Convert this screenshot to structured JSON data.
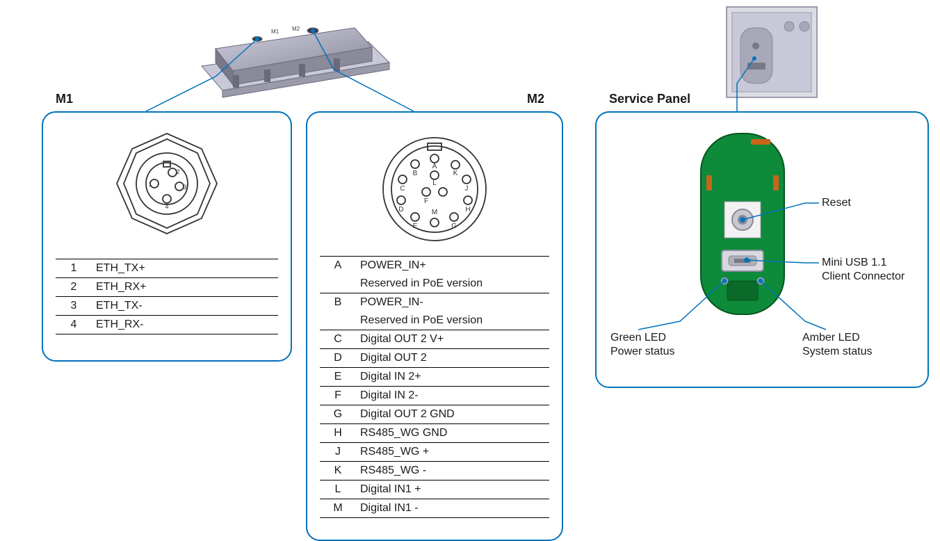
{
  "colors": {
    "panel_border": "#0072bc",
    "callout_line": "#0072bc",
    "text": "#1a1a1a",
    "pcb_green": "#0d8a3a",
    "pcb_dark": "#06561f",
    "copper": "#c7651a",
    "device_gray1": "#b8b8c8",
    "device_gray2": "#8a8a9a",
    "device_gray3": "#6a6a7a",
    "connector_stroke": "#333333"
  },
  "panel_radius": 20,
  "m1": {
    "title": "M1",
    "pins": [
      {
        "id": "1",
        "signal": "ETH_TX+"
      },
      {
        "id": "2",
        "signal": "ETH_RX+"
      },
      {
        "id": "3",
        "signal": "ETH_TX-"
      },
      {
        "id": "4",
        "signal": "ETH_RX-"
      }
    ],
    "connector_pins": [
      "1",
      "2",
      "3",
      "4"
    ]
  },
  "m2": {
    "title": "M2",
    "pins": [
      {
        "id": "A",
        "signal": "POWER_IN+",
        "note": "Reserved in PoE version"
      },
      {
        "id": "B",
        "signal": "POWER_IN-",
        "note": "Reserved in PoE version"
      },
      {
        "id": "C",
        "signal": "Digital OUT 2 V+"
      },
      {
        "id": "D",
        "signal": "Digital OUT 2"
      },
      {
        "id": "E",
        "signal": "Digital IN 2+"
      },
      {
        "id": "F",
        "signal": "Digital IN 2-"
      },
      {
        "id": "G",
        "signal": "Digital OUT 2 GND"
      },
      {
        "id": "H",
        "signal": "RS485_WG GND"
      },
      {
        "id": "J",
        "signal": "RS485_WG +"
      },
      {
        "id": "K",
        "signal": "RS485_WG -"
      },
      {
        "id": "L",
        "signal": "Digital IN1 +"
      },
      {
        "id": "M",
        "signal": "Digital IN1 -"
      }
    ],
    "connector_pins": [
      "A",
      "B",
      "C",
      "D",
      "E",
      "F",
      "G",
      "H",
      "J",
      "K",
      "L",
      "M"
    ]
  },
  "service": {
    "title": "Service Panel",
    "labels": {
      "reset": "Reset",
      "usb_line1": "Mini USB 1.1",
      "usb_line2": "Client Connector",
      "green_led_line1": "Green LED",
      "green_led_line2": "Power status",
      "amber_led_line1": "Amber LED",
      "amber_led_line2": "System status"
    }
  },
  "device_labels": {
    "m1": "M1",
    "m2": "M2"
  }
}
